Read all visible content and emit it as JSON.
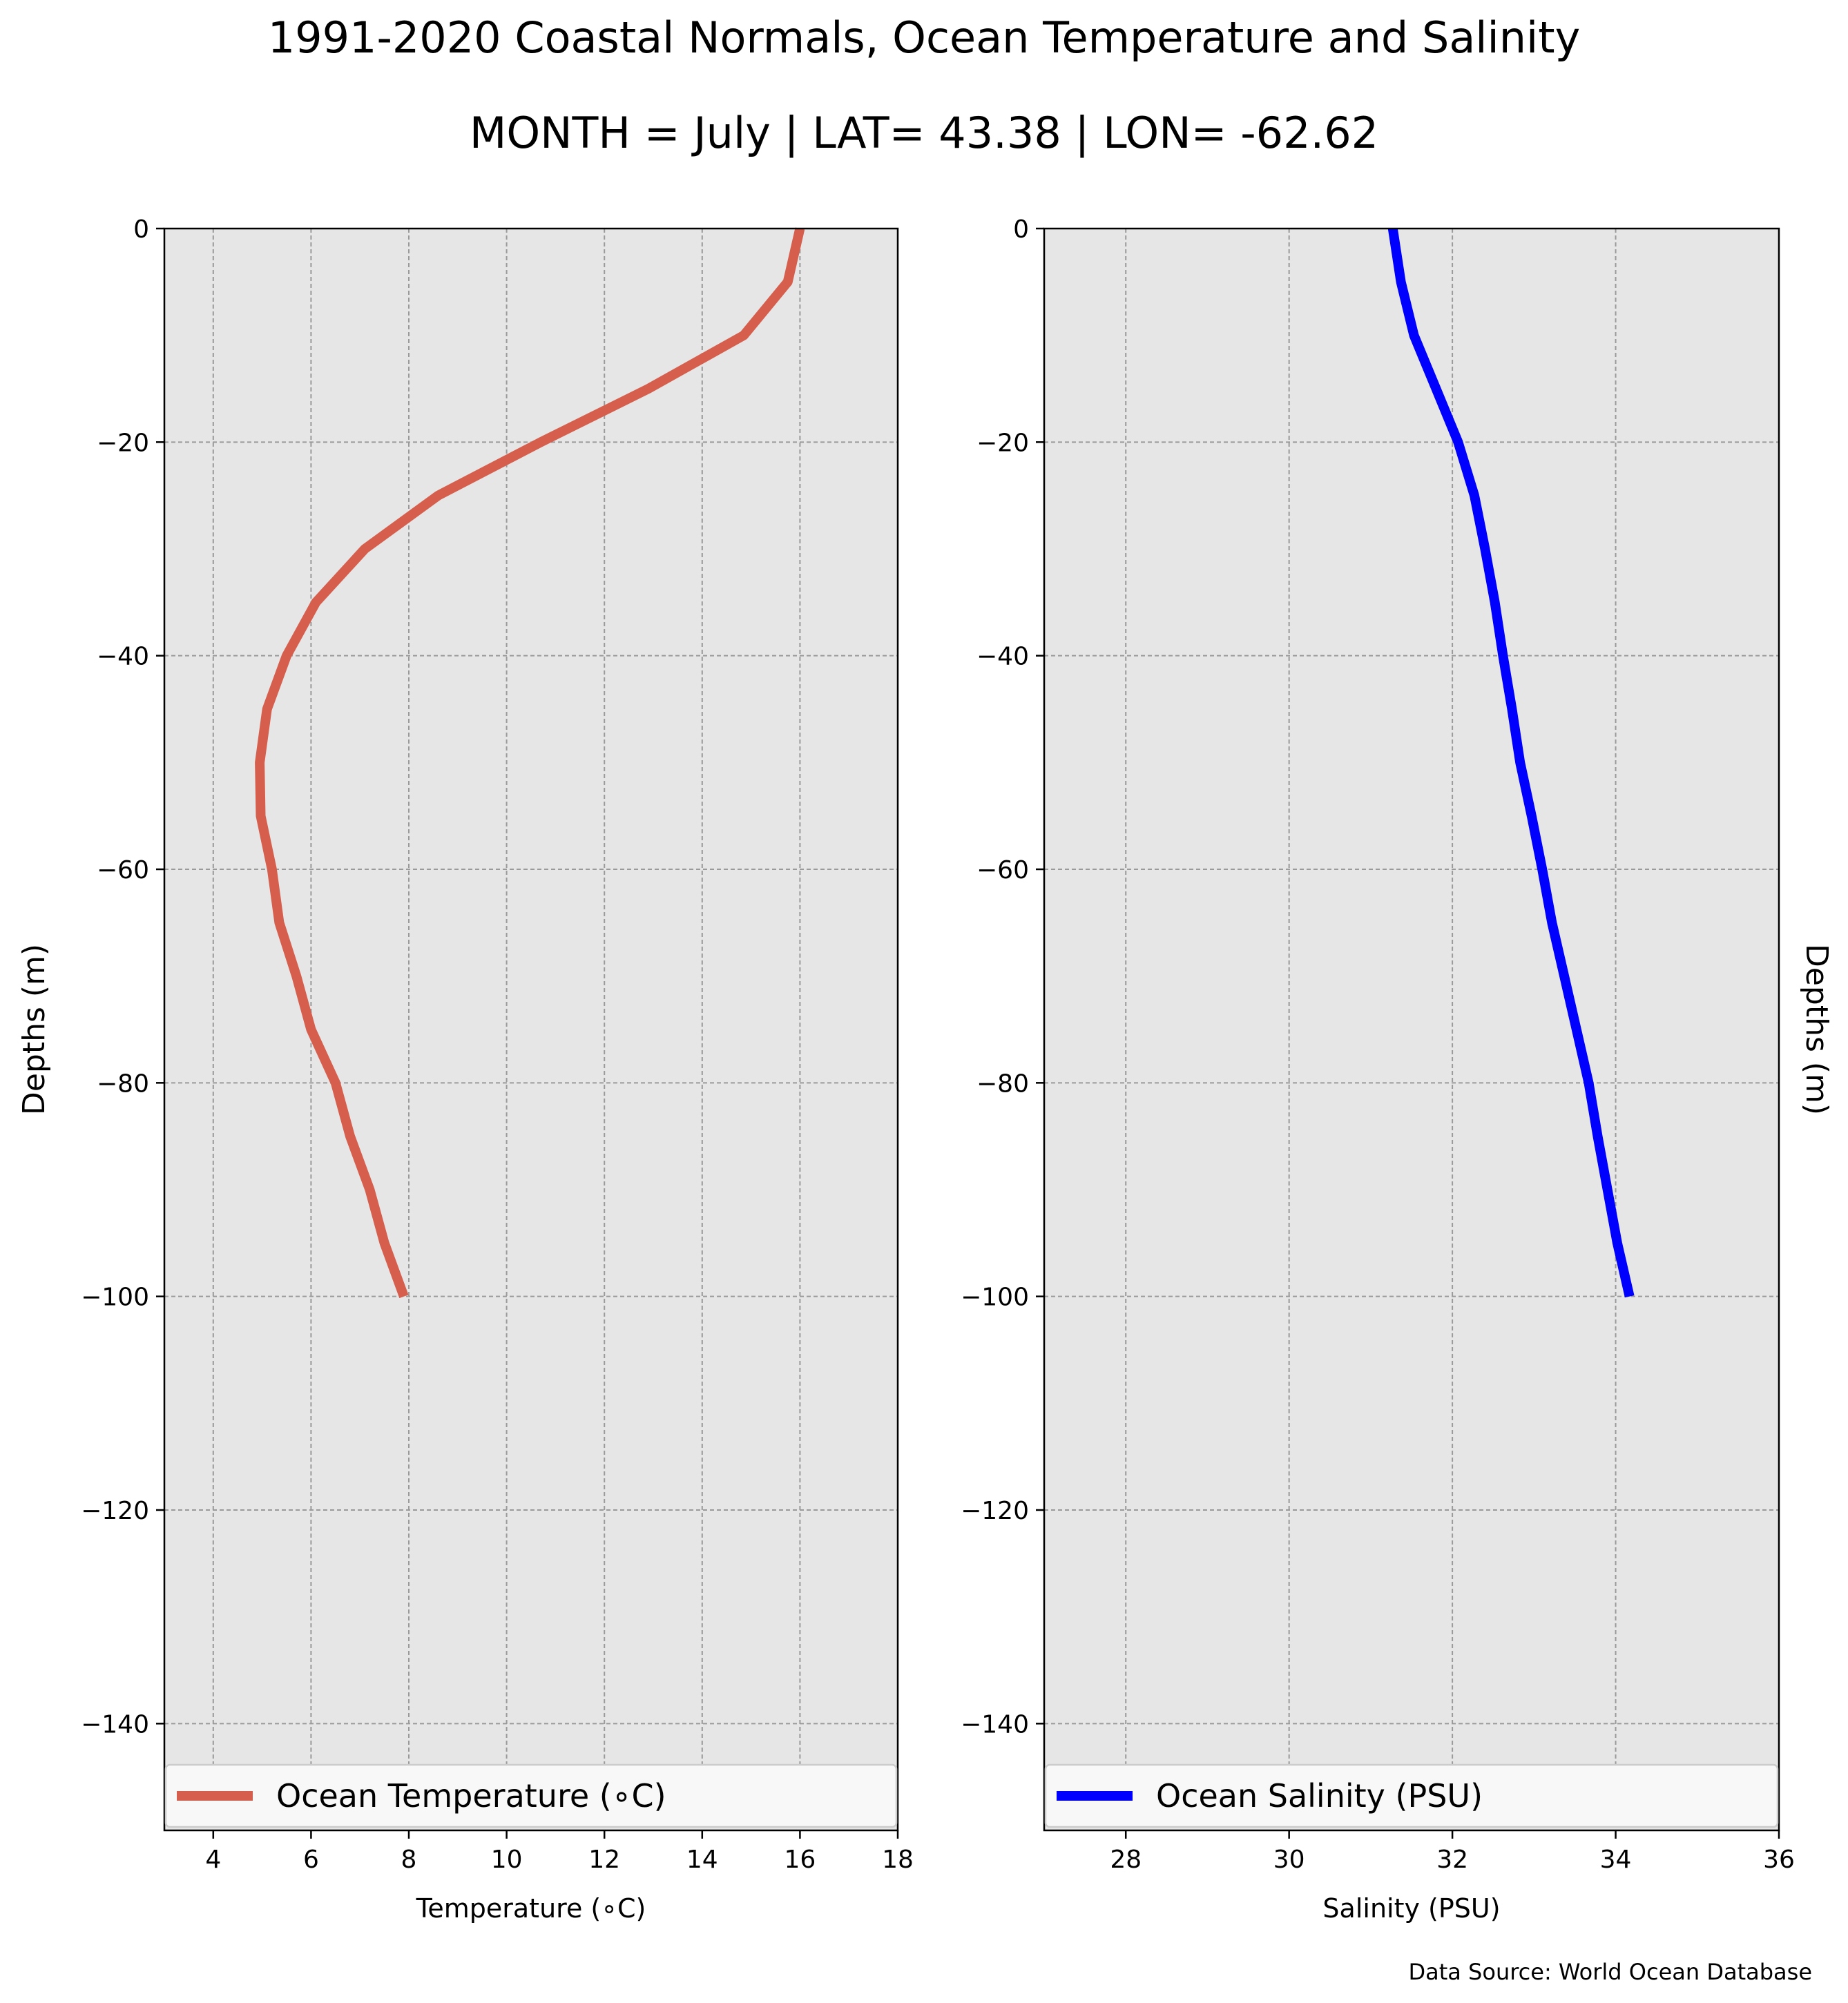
{
  "title": "1991-2020 Coastal Normals, Ocean Temperature and Salinity",
  "subtitle": "MONTH = July | LAT= 43.38 | LON= -62.62",
  "source": "Data Source: World Ocean Database",
  "chart_data": [
    {
      "type": "line",
      "ylabel": "Depths (m)",
      "xlabel": "Temperature (∘C)",
      "xlim": [
        3,
        18
      ],
      "ylim": [
        -150,
        0
      ],
      "xticks": [
        "4",
        "6",
        "8",
        "10",
        "12",
        "14",
        "16",
        "18"
      ],
      "yticks": [
        "0",
        "−20",
        "−40",
        "−60",
        "−80",
        "−100",
        "−120",
        "−140"
      ],
      "grid": true,
      "legend_position": "bottom",
      "series": [
        {
          "name": "Ocean Temperature (∘C)",
          "color": "#d55e4d",
          "x": [
            16.0,
            15.75,
            14.85,
            12.9,
            10.7,
            8.6,
            7.1,
            6.1,
            5.5,
            5.1,
            4.95,
            4.97,
            5.2,
            5.35,
            5.7,
            6.0,
            6.5,
            6.8,
            7.2,
            7.5,
            7.9
          ],
          "y": [
            0,
            -5,
            -10,
            -15,
            -20,
            -25,
            -30,
            -35,
            -40,
            -45,
            -50,
            -55,
            -60,
            -65,
            -70,
            -75,
            -80,
            -85,
            -90,
            -95,
            -100
          ]
        }
      ]
    },
    {
      "type": "line",
      "ylabel": "Depths (m)",
      "xlabel": "Salinity (PSU)",
      "xlim": [
        27,
        36
      ],
      "ylim": [
        -150,
        0
      ],
      "xticks": [
        "28",
        "30",
        "32",
        "34",
        "36"
      ],
      "yticks": [
        "0",
        "−20",
        "−40",
        "−60",
        "−80",
        "−100",
        "−120",
        "−140"
      ],
      "grid": true,
      "legend_position": "bottom",
      "series": [
        {
          "name": "Ocean Salinity (PSU)",
          "color": "#0000ff",
          "x": [
            31.27,
            31.37,
            31.53,
            31.8,
            32.07,
            32.27,
            32.4,
            32.52,
            32.62,
            32.73,
            32.83,
            32.97,
            33.1,
            33.22,
            33.37,
            33.52,
            33.67,
            33.78,
            33.9,
            34.02,
            34.17
          ],
          "y": [
            0,
            -5,
            -10,
            -15,
            -20,
            -25,
            -30,
            -35,
            -40,
            -45,
            -50,
            -55,
            -60,
            -65,
            -70,
            -75,
            -80,
            -85,
            -90,
            -95,
            -100
          ]
        }
      ]
    }
  ]
}
